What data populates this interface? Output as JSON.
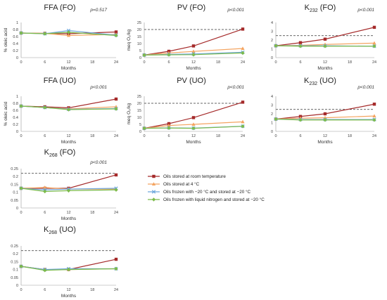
{
  "colors": {
    "room_temperature": "#a52a2a",
    "4C": "#f4a460",
    "frozen_minus20": "#6fa8dc",
    "frozen_liquid_nitrogen": "#7cbb4b"
  },
  "legend": {
    "entries": [
      {
        "label": "Oils stored at room temperature",
        "color_key": "room_temperature",
        "marker": "square"
      },
      {
        "label": "Oils stored at 4 °C",
        "color_key": "4C",
        "marker": "triangle"
      },
      {
        "label": "Oils frozen with −20 °C and stored at −20 °C",
        "color_key": "frozen_minus20",
        "marker": "x"
      },
      {
        "label": "Oils frozen with liquid nitrogen and stored at −20 °C",
        "color_key": "frozen_liquid_nitrogen",
        "marker": "diamond"
      }
    ]
  },
  "chart_data": [
    {
      "type": "line",
      "title_main": "FFA (FO)",
      "title_sub": "",
      "pvalue": "p=0.517",
      "xlabel": "Months",
      "ylabel": "% oleic acid",
      "x_ticks": [
        0,
        6,
        12,
        18,
        24
      ],
      "y_ticks": [
        "0",
        "0.2",
        "0.4",
        "0.6",
        "0.8",
        "1"
      ],
      "ylim": [
        0,
        1
      ],
      "x": [
        0,
        6,
        12,
        24
      ],
      "series": [
        {
          "color_key": "room_temperature",
          "marker": "square",
          "values": [
            0.7,
            0.69,
            0.68,
            0.73
          ]
        },
        {
          "color_key": "4C",
          "marker": "triangle",
          "values": [
            0.7,
            0.69,
            0.63,
            0.66
          ]
        },
        {
          "color_key": "frozen_minus20",
          "marker": "x",
          "values": [
            0.7,
            0.68,
            0.77,
            0.64
          ]
        },
        {
          "color_key": "frozen_liquid_nitrogen",
          "marker": "diamond",
          "values": [
            0.7,
            0.68,
            0.72,
            0.63
          ]
        }
      ]
    },
    {
      "type": "line",
      "title_main": "PV (FO)",
      "title_sub": "",
      "pvalue": "p<0.001",
      "xlabel": "Months",
      "ylabel": "meq O₂/kg",
      "x_ticks": [
        0,
        6,
        12,
        18,
        24
      ],
      "y_ticks": [
        "0",
        "5",
        "10",
        "15",
        "20",
        "25"
      ],
      "ylim": [
        0,
        25
      ],
      "reference_line": 20,
      "x": [
        0,
        6,
        12,
        24
      ],
      "series": [
        {
          "color_key": "room_temperature",
          "marker": "square",
          "values": [
            1.8,
            4.5,
            8.3,
            20.3
          ]
        },
        {
          "color_key": "4C",
          "marker": "triangle",
          "values": [
            1.8,
            3.3,
            4.4,
            6.5
          ]
        },
        {
          "color_key": "frozen_minus20",
          "marker": "x",
          "values": [
            1.8,
            2.3,
            2.6,
            3.8
          ]
        },
        {
          "color_key": "frozen_liquid_nitrogen",
          "marker": "diamond",
          "values": [
            1.8,
            2.0,
            2.1,
            3.3
          ]
        }
      ]
    },
    {
      "type": "line",
      "title_main": "K",
      "title_sub": "232",
      "title_rest": " (FO)",
      "pvalue": "p<0.001",
      "xlabel": "Months",
      "ylabel": "",
      "x_ticks": [
        0,
        6,
        12,
        18,
        24
      ],
      "y_ticks": [
        "0",
        "1",
        "2",
        "3",
        "4"
      ],
      "ylim": [
        0,
        4
      ],
      "reference_line": 2.5,
      "x": [
        0,
        6,
        12,
        24
      ],
      "series": [
        {
          "color_key": "room_temperature",
          "marker": "square",
          "values": [
            1.35,
            1.7,
            2.1,
            3.45
          ]
        },
        {
          "color_key": "4C",
          "marker": "triangle",
          "values": [
            1.35,
            1.4,
            1.5,
            1.65
          ]
        },
        {
          "color_key": "frozen_minus20",
          "marker": "x",
          "values": [
            1.35,
            1.35,
            1.35,
            1.3
          ]
        },
        {
          "color_key": "frozen_liquid_nitrogen",
          "marker": "diamond",
          "values": [
            1.35,
            1.3,
            1.3,
            1.3
          ]
        }
      ]
    },
    {
      "type": "line",
      "title_main": "FFA (UO)",
      "title_sub": "",
      "pvalue": "p<0.001",
      "xlabel": "Months",
      "ylabel": "% oleic acid",
      "x_ticks": [
        0,
        6,
        12,
        18,
        24
      ],
      "y_ticks": [
        "0",
        "0.2",
        "0.4",
        "0.6",
        "0.8",
        "1"
      ],
      "ylim": [
        0,
        1
      ],
      "x": [
        0,
        6,
        12,
        24
      ],
      "series": [
        {
          "color_key": "room_temperature",
          "marker": "square",
          "values": [
            0.72,
            0.7,
            0.67,
            0.92
          ]
        },
        {
          "color_key": "4C",
          "marker": "triangle",
          "values": [
            0.72,
            0.68,
            0.64,
            0.7
          ]
        },
        {
          "color_key": "frozen_minus20",
          "marker": "x",
          "values": [
            0.72,
            0.68,
            0.63,
            0.65
          ]
        },
        {
          "color_key": "frozen_liquid_nitrogen",
          "marker": "diamond",
          "values": [
            0.72,
            0.68,
            0.62,
            0.64
          ]
        }
      ]
    },
    {
      "type": "line",
      "title_main": "PV (UO)",
      "title_sub": "",
      "pvalue": "p<0.001",
      "xlabel": "Months",
      "ylabel": "meq O₂/kg",
      "x_ticks": [
        0,
        6,
        12,
        18,
        24
      ],
      "y_ticks": [
        "0",
        "5",
        "10",
        "15",
        "20",
        "25"
      ],
      "ylim": [
        0,
        25
      ],
      "reference_line": 20,
      "x": [
        0,
        6,
        12,
        24
      ],
      "series": [
        {
          "color_key": "room_temperature",
          "marker": "square",
          "values": [
            2.2,
            5.5,
            9.8,
            20.8
          ]
        },
        {
          "color_key": "4C",
          "marker": "triangle",
          "values": [
            2.2,
            4.2,
            5.0,
            6.8
          ]
        },
        {
          "color_key": "frozen_minus20",
          "marker": "x",
          "values": [
            2.2,
            2.5,
            2.3,
            3.7
          ]
        },
        {
          "color_key": "frozen_liquid_nitrogen",
          "marker": "diamond",
          "values": [
            2.2,
            2.4,
            2.2,
            3.6
          ]
        }
      ]
    },
    {
      "type": "line",
      "title_main": "K",
      "title_sub": "232",
      "title_rest": " (UO)",
      "pvalue": "p<0.001",
      "xlabel": "Months",
      "ylabel": "",
      "x_ticks": [
        0,
        6,
        12,
        18,
        24
      ],
      "y_ticks": [
        "0",
        "1",
        "2",
        "3",
        "4"
      ],
      "ylim": [
        0,
        4
      ],
      "reference_line": 2.5,
      "x": [
        0,
        6,
        12,
        24
      ],
      "series": [
        {
          "color_key": "room_temperature",
          "marker": "square",
          "values": [
            1.4,
            1.7,
            2.0,
            3.1
          ]
        },
        {
          "color_key": "4C",
          "marker": "triangle",
          "values": [
            1.4,
            1.5,
            1.55,
            1.75
          ]
        },
        {
          "color_key": "frozen_minus20",
          "marker": "x",
          "values": [
            1.4,
            1.35,
            1.35,
            1.35
          ]
        },
        {
          "color_key": "frozen_liquid_nitrogen",
          "marker": "diamond",
          "values": [
            1.4,
            1.3,
            1.3,
            1.3
          ]
        }
      ]
    },
    {
      "type": "line",
      "title_main": "K",
      "title_sub": "268",
      "title_rest": " (FO)",
      "pvalue": "p<0.001",
      "xlabel": "Months",
      "ylabel": "",
      "x_ticks": [
        0,
        6,
        12,
        18,
        24
      ],
      "y_ticks": [
        "0",
        "0.05",
        "0.1",
        "0.15",
        "0.2",
        "0.25"
      ],
      "ylim": [
        0,
        0.25
      ],
      "reference_line": 0.22,
      "x": [
        0,
        6,
        12,
        24
      ],
      "series": [
        {
          "color_key": "room_temperature",
          "marker": "square",
          "values": [
            0.125,
            0.125,
            0.125,
            0.21
          ]
        },
        {
          "color_key": "4C",
          "marker": "triangle",
          "values": [
            0.125,
            0.13,
            0.12,
            0.12
          ]
        },
        {
          "color_key": "frozen_minus20",
          "marker": "x",
          "values": [
            0.125,
            0.115,
            0.12,
            0.125
          ]
        },
        {
          "color_key": "frozen_liquid_nitrogen",
          "marker": "diamond",
          "values": [
            0.125,
            0.105,
            0.11,
            0.115
          ]
        }
      ]
    },
    {
      "type": "line",
      "title_main": "K",
      "title_sub": "268",
      "title_rest": " (UO)",
      "pvalue": "",
      "xlabel": "Months",
      "ylabel": "",
      "x_ticks": [
        0,
        6,
        12,
        18,
        24
      ],
      "y_ticks": [
        "0",
        "0.05",
        "0.1",
        "0.15",
        "0.2",
        "0.25"
      ],
      "ylim": [
        0,
        0.25
      ],
      "reference_line": 0.22,
      "x": [
        0,
        6,
        12,
        24
      ],
      "series": [
        {
          "color_key": "room_temperature",
          "marker": "square",
          "values": [
            0.12,
            0.1,
            0.1,
            0.165
          ]
        },
        {
          "color_key": "4C",
          "marker": "triangle",
          "values": [
            0.12,
            0.1,
            0.1,
            0.105
          ]
        },
        {
          "color_key": "frozen_minus20",
          "marker": "x",
          "values": [
            0.12,
            0.1,
            0.105,
            0.105
          ]
        },
        {
          "color_key": "frozen_liquid_nitrogen",
          "marker": "diamond",
          "values": [
            0.12,
            0.095,
            0.1,
            0.105
          ]
        }
      ]
    }
  ]
}
